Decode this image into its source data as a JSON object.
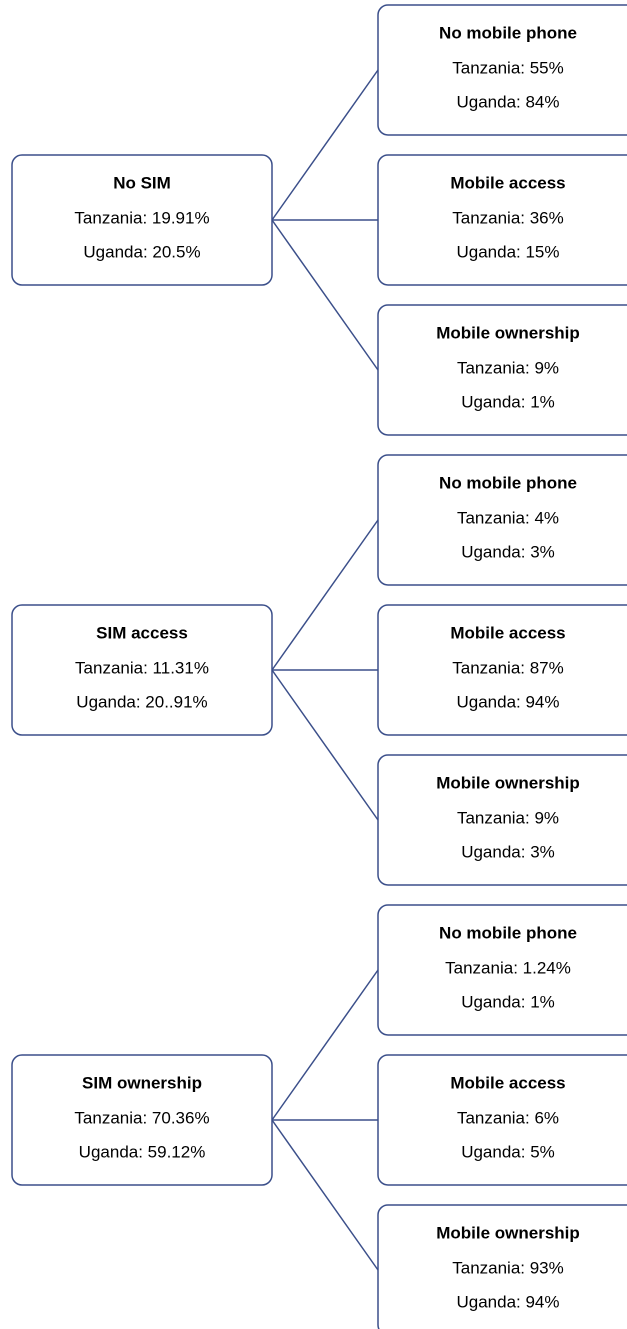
{
  "groups": [
    {
      "parent": {
        "title": "No SIM",
        "lines": [
          "Tanzania: 19.91%",
          "Uganda: 20.5%"
        ]
      },
      "children": [
        {
          "title": "No mobile phone",
          "lines": [
            "Tanzania: 55%",
            "Uganda: 84%"
          ]
        },
        {
          "title": "Mobile access",
          "lines": [
            "Tanzania: 36%",
            "Uganda: 15%"
          ]
        },
        {
          "title": "Mobile ownership",
          "lines": [
            "Tanzania: 9%",
            "Uganda: 1%"
          ]
        }
      ]
    },
    {
      "parent": {
        "title": "SIM access",
        "lines": [
          "Tanzania: 11.31%",
          "Uganda: 20..91%"
        ]
      },
      "children": [
        {
          "title": "No mobile phone",
          "lines": [
            "Tanzania: 4%",
            "Uganda: 3%"
          ]
        },
        {
          "title": "Mobile access",
          "lines": [
            "Tanzania: 87%",
            "Uganda: 94%"
          ]
        },
        {
          "title": "Mobile ownership",
          "lines": [
            "Tanzania: 9%",
            "Uganda: 3%"
          ]
        }
      ]
    },
    {
      "parent": {
        "title": "SIM ownership",
        "lines": [
          "Tanzania: 70.36%",
          "Uganda: 59.12%"
        ]
      },
      "children": [
        {
          "title": "No mobile phone",
          "lines": [
            "Tanzania: 1.24%",
            "Uganda: 1%"
          ]
        },
        {
          "title": "Mobile access",
          "lines": [
            "Tanzania: 6%",
            "Uganda: 5%"
          ]
        },
        {
          "title": "Mobile ownership",
          "lines": [
            "Tanzania: 93%",
            "Uganda: 94%"
          ]
        }
      ]
    }
  ]
}
